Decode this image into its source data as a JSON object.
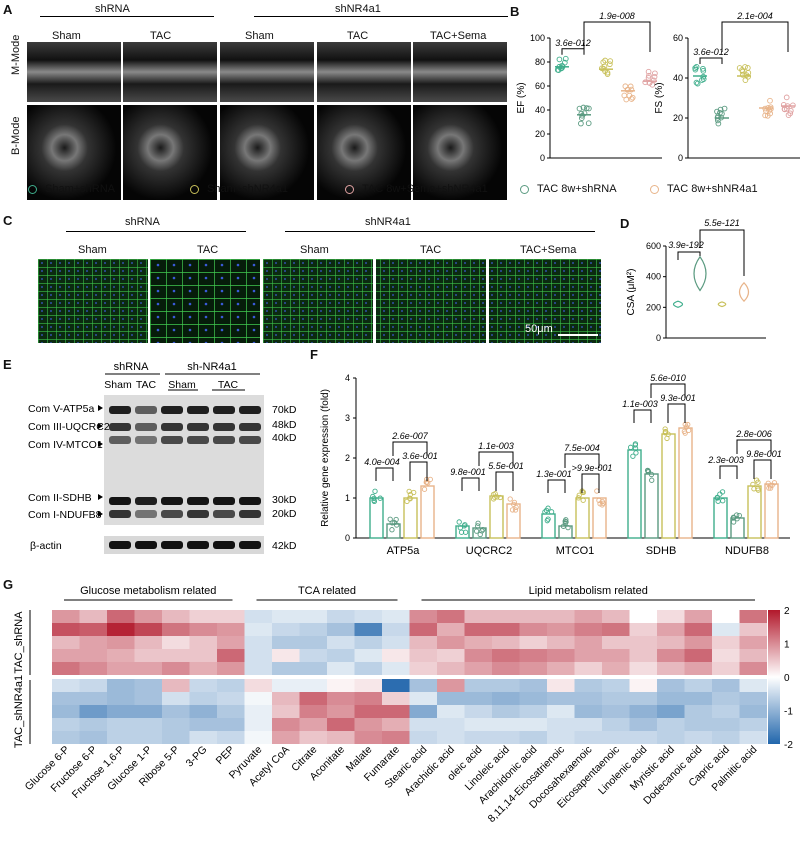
{
  "panel_labels": [
    "A",
    "B",
    "C",
    "D",
    "E",
    "F",
    "G"
  ],
  "panelA": {
    "group_shRNA": "shRNA",
    "group_shNR4a1": "shNR4a1",
    "columns": [
      "Sham",
      "TAC",
      "Sham",
      "TAC",
      "TAC+Sema"
    ],
    "rows": [
      "M-Mode",
      "B-Mode"
    ]
  },
  "panelB": {
    "ef": {
      "ylabel": "EF (%)",
      "yticks": [
        "0",
        "20",
        "40",
        "60",
        "80",
        "100"
      ],
      "p_left": "3.6e-012",
      "p_top": "1.9e-008"
    },
    "fs": {
      "ylabel": "FS (%)",
      "yticks": [
        "0",
        "20",
        "40",
        "60"
      ],
      "p_left": "3.6e-012",
      "p_top": "2.1e-004"
    }
  },
  "legend": [
    {
      "label": "Sham+shRNA",
      "color": "#3fae8c"
    },
    {
      "label": "Sham+shNR4a1",
      "color": "#c8c05a"
    },
    {
      "label": "TAC 8w+Sema+shNR4a1",
      "color": "#e0a2a2"
    },
    {
      "label": "TAC 8w+shRNA",
      "color": "#5a9a80"
    },
    {
      "label": "TAC 8w+shNR4a1",
      "color": "#e8b48a"
    }
  ],
  "panelC": {
    "group_shRNA": "shRNA",
    "group_shNR4a1": "shNR4a1",
    "columns": [
      "Sham",
      "TAC",
      "Sham",
      "TAC",
      "TAC+Sema"
    ],
    "scalebar": "50μm"
  },
  "panelD": {
    "ylabel": "CSA (μM²)",
    "yticks": [
      "0",
      "200",
      "400",
      "600"
    ],
    "p_left": "3.9e-192",
    "p_top": "5.5e-121"
  },
  "panelE": {
    "group_shRNA": "shRNA",
    "group_shNR4a1": "sh-NR4a1",
    "lanes": [
      "Sham",
      "TAC",
      "Sham",
      "TAC"
    ],
    "bands_left": [
      "Com V-ATP5a",
      "Com III-UQCRC2",
      "Com IV-MTCO1",
      "Com II-SDHB",
      "Com I-NDUFB8",
      "β-actin"
    ],
    "bands_right": [
      "70kD",
      "48kD",
      "40kD",
      "30kD",
      "20kD",
      "42kD"
    ]
  },
  "chart_data": {
    "type": "bar",
    "ylabel": "Relative gene expression (fold)",
    "ylim": [
      0,
      4
    ],
    "yticks": [
      "0",
      "1",
      "2",
      "3",
      "4"
    ],
    "categories": [
      "ATP5a",
      "UQCRC2",
      "MTCO1",
      "SDHB",
      "NDUFB8"
    ],
    "series": [
      {
        "name": "Sham+shRNA",
        "color": "#3fae8c",
        "values": [
          1.0,
          0.3,
          0.6,
          2.2,
          1.0
        ]
      },
      {
        "name": "TAC 8w+shRNA",
        "color": "#5a9a80",
        "values": [
          0.35,
          0.25,
          0.3,
          1.6,
          0.5
        ]
      },
      {
        "name": "Sham+shNR4a1",
        "color": "#c8c05a",
        "values": [
          1.0,
          1.05,
          1.0,
          2.6,
          1.3
        ]
      },
      {
        "name": "TAC 8w+shNR4a1",
        "color": "#e8b48a",
        "values": [
          1.3,
          0.85,
          1.0,
          2.75,
          1.35
        ]
      }
    ],
    "pvalues": [
      [
        "4.0e-004",
        "2.6e-007",
        "3.6e-001"
      ],
      [
        "9.8e-001",
        "1.1e-003",
        "5.5e-001"
      ],
      [
        "1.3e-001",
        "7.5e-004",
        ">9.9e-001"
      ],
      [
        "1.1e-003",
        "5.6e-010",
        "9.3e-001"
      ],
      [
        "2.3e-003",
        "2.8e-006",
        "9.8e-001"
      ]
    ]
  },
  "heatmap": {
    "group_labels": [
      "Glucose metabolism related",
      "TCA related",
      "Lipid metabolism related"
    ],
    "row_groups": [
      "TAC_shRNA",
      "TAC_shNR4a1"
    ],
    "colorbar_ticks": [
      "2",
      "1",
      "0",
      "-1",
      "-2"
    ],
    "columns": [
      "Glucose 6-P",
      "Fructose 6-P",
      "Fructose 1,6-P",
      "Glucose 1-P",
      "Ribose 5-P",
      "3-PG",
      "PEP",
      "Pyruvate",
      "Acetyl CoA",
      "Citrate",
      "Aconitate",
      "Malate",
      "Fumarate",
      "Stearic acid",
      "Arachidic acid",
      "oleic acid",
      "Linoleic acid",
      "Arachidonic acid",
      "8,11,14-Eicosatrienoic",
      "Docosahexaenoic",
      "Eicosapentaenoic",
      "Linolenic acid",
      "Myristic acid",
      "Dodecanoic acid",
      "Capric acid",
      "Palmitic acid"
    ],
    "values": [
      [
        0.9,
        0.6,
        1.3,
        0.9,
        0.6,
        0.4,
        0.4,
        -0.4,
        -0.3,
        -0.3,
        -0.5,
        -0.4,
        -0.3,
        1.0,
        1.2,
        0.6,
        0.6,
        0.6,
        0.6,
        0.8,
        0.6,
        0.0,
        0.3,
        0.8,
        0.0,
        1.2
      ],
      [
        1.5,
        1.4,
        1.9,
        1.6,
        1.2,
        1.0,
        0.9,
        -0.3,
        -0.5,
        -0.6,
        -0.8,
        -1.6,
        -0.5,
        1.3,
        0.7,
        1.3,
        1.3,
        1.0,
        0.9,
        1.1,
        1.2,
        0.4,
        0.8,
        1.3,
        -0.3,
        0.5
      ],
      [
        0.6,
        0.8,
        0.9,
        0.6,
        0.3,
        0.5,
        0.8,
        -0.4,
        -0.7,
        -0.7,
        -0.4,
        -0.6,
        -0.4,
        0.6,
        0.9,
        0.7,
        0.6,
        0.4,
        0.6,
        0.8,
        0.5,
        0.5,
        0.6,
        0.9,
        0.4,
        0.8
      ],
      [
        0.8,
        0.8,
        0.7,
        0.5,
        0.5,
        0.5,
        1.3,
        -0.4,
        0.2,
        -0.5,
        -0.6,
        -0.3,
        0.2,
        0.5,
        0.4,
        1.0,
        1.2,
        1.1,
        1.0,
        0.8,
        0.8,
        0.5,
        1.0,
        1.3,
        0.3,
        0.6
      ],
      [
        1.2,
        1.0,
        0.8,
        0.8,
        1.0,
        0.7,
        0.9,
        -0.4,
        -0.7,
        -0.7,
        -0.3,
        -0.6,
        -0.3,
        0.4,
        0.6,
        0.8,
        1.0,
        0.9,
        0.7,
        0.4,
        0.7,
        0.3,
        0.6,
        0.8,
        0.4,
        1.0
      ],
      [
        -0.4,
        -0.5,
        -0.9,
        -0.8,
        0.6,
        -0.5,
        -0.6,
        0.3,
        -0.2,
        -0.2,
        0.1,
        0.2,
        -1.9,
        -0.8,
        0.9,
        -0.7,
        -0.7,
        -0.8,
        0.2,
        -0.7,
        -0.6,
        0.1,
        -0.8,
        -0.6,
        -0.8,
        -0.3
      ],
      [
        -0.8,
        -0.8,
        -0.9,
        -0.8,
        -0.4,
        -0.6,
        -0.5,
        -0.1,
        0.6,
        1.3,
        1.0,
        1.1,
        0.4,
        -0.3,
        -0.9,
        -0.9,
        -1.0,
        -0.9,
        -0.8,
        -0.8,
        -0.7,
        -0.7,
        -0.9,
        -0.9,
        -0.7,
        -0.8
      ],
      [
        -0.9,
        -1.3,
        -1.1,
        -1.1,
        -0.8,
        -1.0,
        -0.7,
        -0.2,
        0.5,
        1.1,
        0.9,
        1.3,
        1.3,
        -1.1,
        -0.3,
        -0.5,
        -0.7,
        -0.6,
        -0.3,
        -0.9,
        -0.8,
        -1.0,
        -1.2,
        -0.7,
        -0.6,
        -0.9
      ],
      [
        -0.6,
        -0.7,
        -0.6,
        -0.6,
        -0.7,
        -0.8,
        -0.8,
        -0.2,
        1.0,
        0.8,
        1.3,
        0.9,
        0.7,
        -0.4,
        -0.4,
        -0.3,
        -0.3,
        -0.3,
        -0.4,
        -0.4,
        -0.6,
        -0.8,
        -0.6,
        -0.7,
        -0.7,
        -0.6
      ],
      [
        -0.7,
        -0.8,
        -0.6,
        -0.6,
        -0.7,
        -0.4,
        -0.5,
        -0.1,
        0.8,
        0.5,
        0.6,
        1.0,
        1.1,
        -0.5,
        -0.4,
        -0.5,
        -0.5,
        -0.6,
        -0.4,
        -0.5,
        -0.5,
        -0.5,
        -0.6,
        -0.5,
        -0.6,
        -0.4
      ]
    ]
  }
}
